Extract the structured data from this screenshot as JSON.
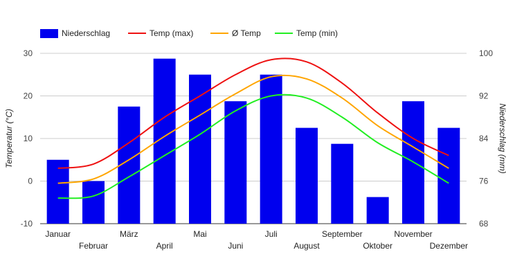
{
  "chart_data": {
    "type": "bar+line",
    "categories": [
      "Januar",
      "Februar",
      "März",
      "April",
      "Mai",
      "Juni",
      "Juli",
      "August",
      "September",
      "Oktober",
      "November",
      "Dezember"
    ],
    "bar_series": {
      "name": "Niederschlag",
      "axis": "right",
      "color": "#0000ee",
      "values": [
        80,
        76,
        90,
        99,
        96,
        91,
        96,
        86,
        83,
        73,
        91,
        86
      ]
    },
    "line_series": [
      {
        "name": "Temp (max)",
        "axis": "left",
        "color": "#ee1111",
        "values": [
          3,
          4,
          9,
          15,
          20,
          25,
          28.5,
          28,
          23,
          16,
          10,
          6
        ]
      },
      {
        "name": "Ø Temp",
        "axis": "left",
        "color": "#ffa500",
        "values": [
          -0.5,
          0.5,
          5,
          10.5,
          15.5,
          20.5,
          24.5,
          24,
          19.5,
          13,
          8,
          3
        ]
      },
      {
        "name": "Temp (min)",
        "axis": "left",
        "color": "#22ee22",
        "values": [
          -4,
          -3.5,
          1,
          6,
          11,
          16.5,
          20,
          19.5,
          15,
          9,
          4.5,
          -0.5
        ]
      }
    ],
    "left_axis": {
      "title": "Temperatur (°C)",
      "min": -10,
      "max": 30,
      "ticks": [
        "30",
        "20",
        "10",
        "0",
        "-10"
      ]
    },
    "right_axis": {
      "title": "Niederschlag (mm)",
      "min": 68,
      "max": 100,
      "ticks": [
        "100",
        "92",
        "84",
        "76",
        "68"
      ]
    },
    "legend_position": "top-left",
    "grid": true
  }
}
